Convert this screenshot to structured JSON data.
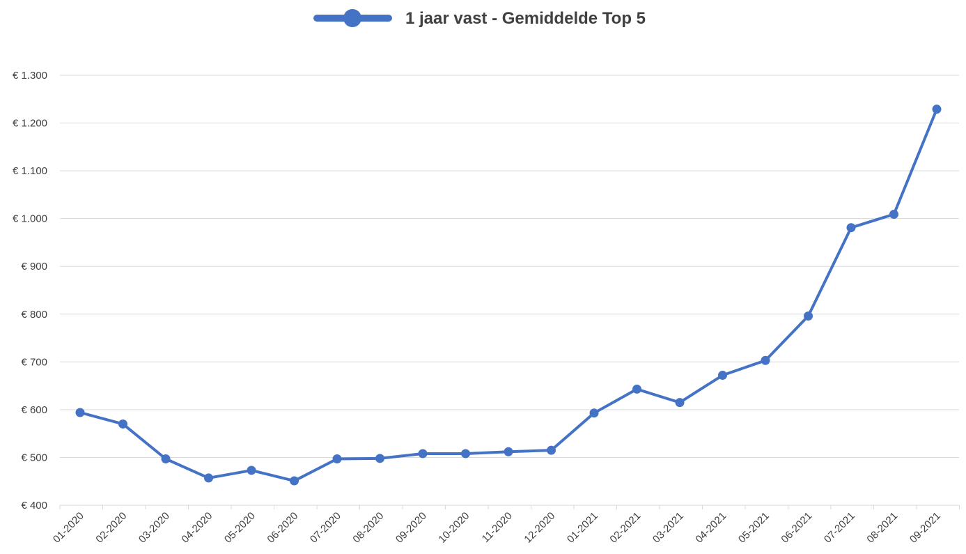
{
  "chart_data": {
    "type": "line",
    "categories": [
      "01-2020",
      "02-2020",
      "03-2020",
      "04-2020",
      "05-2020",
      "06-2020",
      "07-2020",
      "08-2020",
      "09-2020",
      "10-2020",
      "11-2020",
      "12-2020",
      "01-2021",
      "02-2021",
      "03-2021",
      "04-2021",
      "05-2021",
      "06-2021",
      "07-2021",
      "08-2021",
      "09-2021"
    ],
    "series": [
      {
        "name": "1 jaar vast - Gemiddelde Top 5",
        "values": [
          594,
          570,
          497,
          457,
          473,
          451,
          497,
          498,
          508,
          508,
          512,
          515,
          593,
          643,
          615,
          672,
          703,
          796,
          981,
          1009,
          1229
        ],
        "color": "#4472C4"
      }
    ],
    "y_ticks": [
      "€ 400",
      "€ 500",
      "€ 600",
      "€ 700",
      "€ 800",
      "€ 900",
      "€ 1.000",
      "€ 1.100",
      "€ 1.200",
      "€ 1.300"
    ],
    "ylim": [
      400,
      1300
    ],
    "y_step": 100,
    "grid": true,
    "legend": "top-center",
    "gridline_color": "#D9D9D9"
  }
}
